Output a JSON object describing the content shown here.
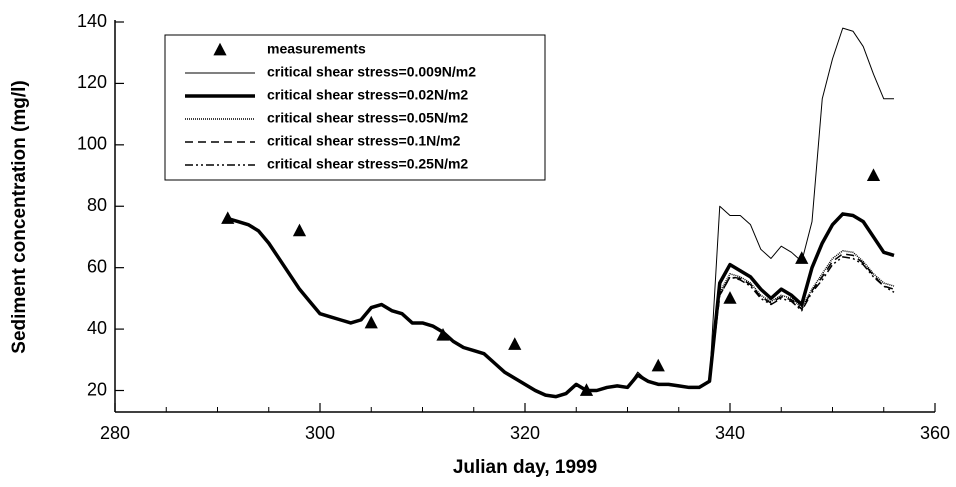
{
  "chart_data": {
    "type": "line",
    "x_label": "Julian day, 1999",
    "y_label": "Sediment concentration (mg/l)",
    "xlim": [
      280,
      360
    ],
    "ylim": [
      13,
      140
    ],
    "xticks": [
      280,
      300,
      320,
      340,
      360
    ],
    "yticks": [
      20,
      40,
      60,
      80,
      100,
      120,
      140
    ],
    "x": [
      291,
      292,
      293,
      294,
      295,
      296,
      297,
      298,
      299,
      300,
      301,
      302,
      303,
      304,
      305,
      306,
      307,
      308,
      309,
      310,
      311,
      312,
      313,
      314,
      315,
      316,
      317,
      318,
      319,
      320,
      321,
      322,
      323,
      324,
      325,
      326,
      327,
      328,
      329,
      330,
      331,
      332,
      333,
      334,
      335,
      336,
      337,
      338,
      339,
      340,
      341,
      342,
      343,
      344,
      345,
      346,
      347,
      348,
      349,
      350,
      351,
      352,
      353,
      354,
      355,
      356
    ],
    "series": [
      {
        "name": "measurements",
        "color": "#000000",
        "marker": "triangle",
        "x": [
          291,
          298,
          305,
          312,
          319,
          326,
          333,
          340,
          347,
          354
        ],
        "values": [
          76,
          72,
          42,
          38,
          35,
          20,
          28,
          50,
          63,
          90
        ]
      },
      {
        "name": "critical shear stress=0.009N/m2",
        "color": "#000000",
        "line_width": 1,
        "dash": "none",
        "values": [
          76,
          75,
          74,
          72,
          68,
          63,
          58,
          53,
          49,
          45,
          44,
          43,
          42,
          43,
          47,
          48,
          46,
          45,
          42,
          42,
          41,
          39,
          36,
          34,
          33,
          32,
          29,
          26,
          24,
          22,
          20,
          18.5,
          18,
          19,
          22,
          20,
          20,
          21,
          21.5,
          21,
          26,
          23,
          22,
          22,
          21.5,
          21,
          21,
          23,
          80,
          77,
          77,
          74,
          66,
          63,
          67,
          65,
          62,
          75,
          115,
          128,
          138,
          137,
          132,
          123,
          115,
          115
        ]
      },
      {
        "name": "critical shear stress=0.02N/m2",
        "color": "#000000",
        "line_width": 3.5,
        "dash": "none",
        "values": [
          76,
          75,
          74,
          72,
          68,
          63,
          58,
          53,
          49,
          45,
          44,
          43,
          42,
          43,
          47,
          48,
          46,
          45,
          42,
          42,
          41,
          39,
          36,
          34,
          33,
          32,
          29,
          26,
          24,
          22,
          20,
          18.5,
          18,
          19,
          22,
          20,
          20,
          21,
          21.5,
          21,
          25,
          23,
          22,
          22,
          21.5,
          21,
          21,
          23,
          55,
          61,
          59,
          57,
          53,
          50,
          53,
          51,
          48,
          60,
          68,
          74,
          77.5,
          77,
          75,
          70,
          65,
          64
        ]
      },
      {
        "name": "critical shear stress=0.05N/m2",
        "color": "#000000",
        "line_width": 1.5,
        "dash": "1 1",
        "values": [
          76,
          75,
          74,
          72,
          68,
          63,
          58,
          53,
          49,
          45,
          44,
          43,
          42,
          43,
          47,
          48,
          46,
          45,
          42,
          42,
          41,
          39,
          36,
          34,
          33,
          32,
          29,
          26,
          24,
          22,
          20,
          18.5,
          18,
          19,
          22,
          20,
          20,
          21,
          21.5,
          21,
          25,
          23,
          22,
          22,
          21.5,
          21,
          21,
          23,
          52,
          58,
          57,
          55,
          51,
          49,
          51,
          50,
          47,
          53,
          58,
          63,
          65.5,
          65,
          62,
          58,
          55,
          54
        ]
      },
      {
        "name": "critical shear stress=0.1N/m2",
        "color": "#000000",
        "line_width": 1.5,
        "dash": "8 5",
        "values": [
          76,
          75,
          74,
          72,
          68,
          63,
          58,
          53,
          49,
          45,
          44,
          43,
          42,
          43,
          47,
          48,
          46,
          45,
          42,
          42,
          41,
          39,
          36,
          34,
          33,
          32,
          29,
          26,
          24,
          22,
          20,
          18.5,
          18,
          19,
          22,
          20,
          20,
          21,
          21.5,
          21,
          25,
          23,
          22,
          22,
          21.5,
          21,
          21,
          23,
          51,
          57,
          56.5,
          54.5,
          50.5,
          48.5,
          50.5,
          49.5,
          46.5,
          52.5,
          57,
          62,
          64.5,
          64,
          61.5,
          57.5,
          54,
          53
        ]
      },
      {
        "name": "critical shear stress=0.25N/m2",
        "color": "#000000",
        "line_width": 1.5,
        "dash": "8 3 2 3 2 3",
        "values": [
          76,
          75,
          74,
          72,
          68,
          63,
          58,
          53,
          49,
          45,
          44,
          43,
          42,
          43,
          47,
          48,
          46,
          45,
          42,
          42,
          41,
          39,
          36,
          34,
          33,
          32,
          29,
          26,
          24,
          22,
          20,
          18.5,
          18,
          19,
          22,
          20,
          20,
          21,
          21.5,
          21,
          25,
          23,
          22,
          22,
          21.5,
          21,
          21,
          23,
          51,
          57,
          56,
          54,
          50,
          48,
          50,
          49,
          46,
          52,
          56,
          61,
          63.5,
          63,
          61,
          57,
          54,
          52
        ]
      }
    ]
  }
}
